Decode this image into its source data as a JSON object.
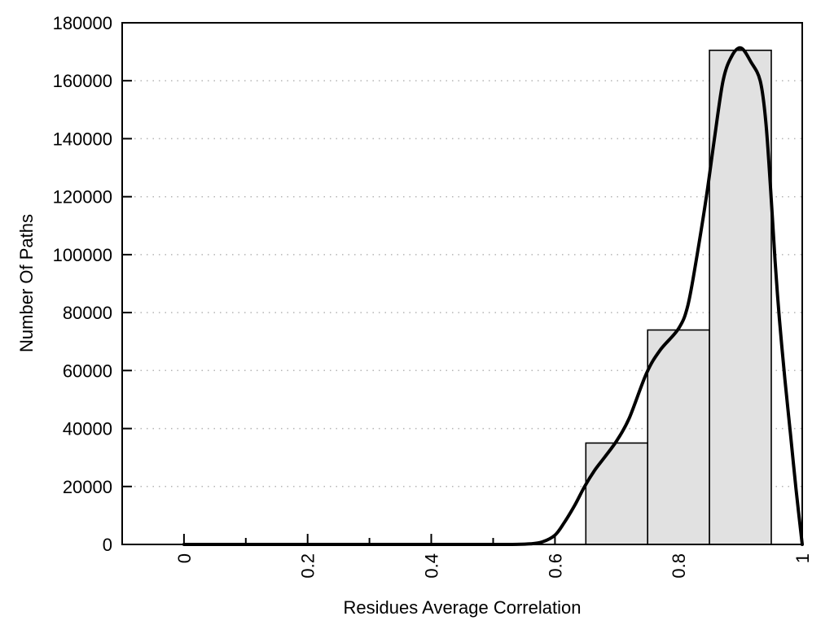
{
  "chart_data": {
    "type": "bar",
    "subtype": "histogram-with-smoothed-curve",
    "title": "",
    "xlabel": "Residues Average Correlation",
    "ylabel": "Number Of Paths",
    "xlim": [
      -0.1,
      1.0
    ],
    "ylim": [
      0,
      180000
    ],
    "grid": "horizontal dotted gridlines at every labeled y tick",
    "legend_position": "none",
    "x_ticks": {
      "major": [
        0,
        0.2,
        0.4,
        0.6,
        0.8,
        1
      ],
      "major_labels": [
        "0",
        "0.2",
        "0.4",
        "0.6",
        "0.8",
        "1"
      ],
      "minor": [
        0.1,
        0.3,
        0.5,
        0.7,
        0.9
      ],
      "label_rotation_deg": -90
    },
    "y_ticks": {
      "major": [
        0,
        20000,
        40000,
        60000,
        80000,
        100000,
        120000,
        140000,
        160000,
        180000
      ],
      "major_labels": [
        "0",
        "20000",
        "40000",
        "60000",
        "80000",
        "100000",
        "120000",
        "140000",
        "160000",
        "180000"
      ]
    },
    "bars": {
      "bin_edges": [
        0.65,
        0.75,
        0.85,
        0.95
      ],
      "counts": [
        35000,
        74000,
        170500
      ],
      "fill": "#e1e1e1",
      "stroke": "#000000"
    },
    "curve": {
      "name": "smoothed-distribution-curve",
      "color": "#000000",
      "stroke_width": 4,
      "peak": {
        "x": 0.9,
        "y": 171300
      },
      "points": [
        [
          0,
          0
        ],
        [
          0.05,
          0
        ],
        [
          0.1,
          0
        ],
        [
          0.15,
          0
        ],
        [
          0.2,
          0
        ],
        [
          0.25,
          0
        ],
        [
          0.3,
          0
        ],
        [
          0.35,
          0
        ],
        [
          0.4,
          0
        ],
        [
          0.45,
          0
        ],
        [
          0.5,
          0
        ],
        [
          0.53,
          0
        ],
        [
          0.56,
          200
        ],
        [
          0.58,
          900
        ],
        [
          0.6,
          3200
        ],
        [
          0.615,
          7500
        ],
        [
          0.632,
          13500
        ],
        [
          0.648,
          20000
        ],
        [
          0.664,
          25500
        ],
        [
          0.68,
          30000
        ],
        [
          0.7,
          35800
        ],
        [
          0.72,
          43500
        ],
        [
          0.748,
          59000
        ],
        [
          0.77,
          67000
        ],
        [
          0.8,
          74500
        ],
        [
          0.815,
          82500
        ],
        [
          0.83,
          100000
        ],
        [
          0.845,
          120000
        ],
        [
          0.858,
          140000
        ],
        [
          0.872,
          160000
        ],
        [
          0.886,
          168500
        ],
        [
          0.901,
          171300
        ],
        [
          0.917,
          166500
        ],
        [
          0.932,
          160000
        ],
        [
          0.941,
          146000
        ],
        [
          0.949,
          122000
        ],
        [
          0.956,
          98000
        ],
        [
          0.963,
          78000
        ],
        [
          0.972,
          57000
        ],
        [
          0.981,
          38000
        ],
        [
          0.99,
          19000
        ],
        [
          1,
          0
        ]
      ]
    },
    "colors": {
      "background": "#ffffff",
      "plot_border": "#000000",
      "grid": "#b5b5b5",
      "tick": "#000000",
      "text": "#000000"
    }
  }
}
